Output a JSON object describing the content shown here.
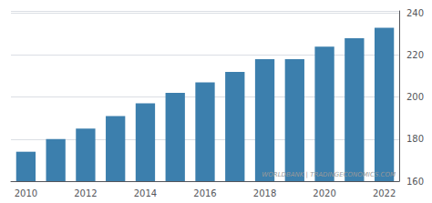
{
  "chart_data": {
    "type": "bar",
    "categories": [
      "2010",
      null,
      "2012",
      null,
      "2014",
      null,
      "2016",
      null,
      "2018",
      null,
      "2020",
      null,
      "2022"
    ],
    "values": [
      174,
      180,
      185,
      191,
      197,
      202,
      207,
      212,
      218,
      218,
      224,
      228,
      233
    ],
    "color": "#3C7FAD",
    "ylim": [
      160,
      241
    ],
    "yticks": [
      160,
      180,
      200,
      220,
      240
    ],
    "grid": true,
    "annotations": [
      "WORLDBANK | TRADINGECONOMICS.COM"
    ]
  }
}
